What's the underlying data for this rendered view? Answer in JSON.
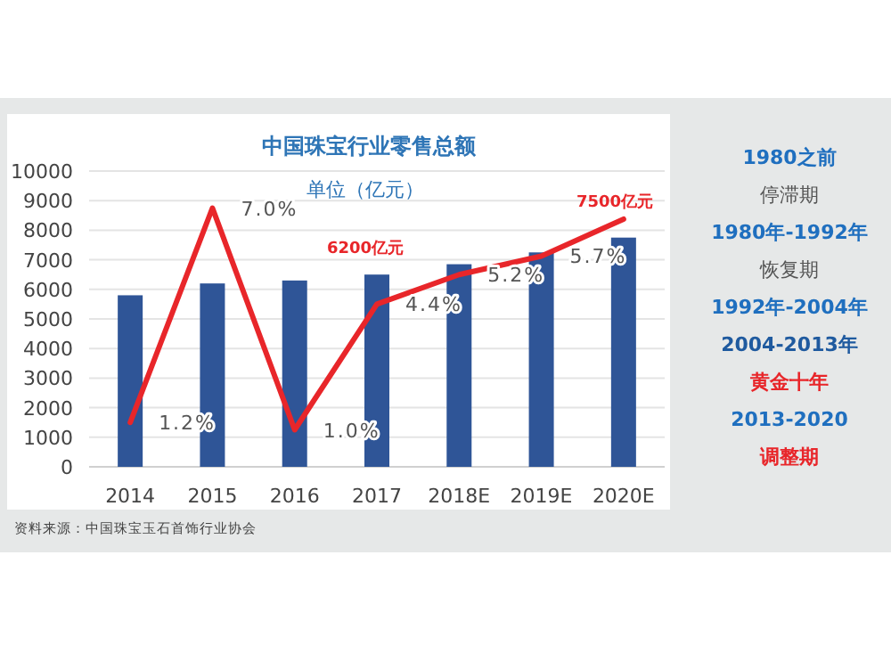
{
  "chart_data": [
    {
      "type": "bar",
      "title": "中国珠宝行业零售总额",
      "subtitle": "单位（亿元）",
      "categories": [
        "2014",
        "2015",
        "2016",
        "2017",
        "2018E",
        "2019E",
        "2020E"
      ],
      "series": [
        {
          "type": "bar",
          "color": "#2f5597",
          "values": [
            5800,
            6200,
            6300,
            6500,
            6850,
            7250,
            7750
          ]
        },
        {
          "type": "line",
          "axis": "y2",
          "color": "#e8262a",
          "values": [
            1.2,
            7.0,
            1.0,
            4.4,
            5.2,
            5.7,
            6.7
          ],
          "value_labels": [
            "1.2%",
            "7.0%",
            "1.0%",
            "4.4%",
            "5.2%",
            "5.7%",
            null
          ]
        }
      ],
      "ylim": [
        0,
        10000
      ],
      "yticks": [
        0,
        1000,
        2000,
        3000,
        4000,
        5000,
        6000,
        7000,
        8000,
        9000,
        10000
      ],
      "y2lim": [
        0,
        8
      ],
      "grid": "y",
      "marker": "none",
      "line_style": "solid",
      "annotations": [
        "6200亿元",
        "7500亿元",
        "资料来源：中国珠宝玉石首饰行业协会"
      ]
    },
    {
      "type": "other",
      "annotations": [
        "1980之前",
        "停滞期",
        "1980年-1992年",
        "恢复期",
        "1992年-2004年",
        "2004-2013年",
        "黄金十年",
        "2013-2020",
        "调整期"
      ],
      "colors": [
        "#1f6fbf",
        "#555555",
        "#1f6fbf",
        "#555555",
        "#1f6fbf",
        "#1f5a9f",
        "#e8262a",
        "#1f6fbf",
        "#e8262a"
      ]
    }
  ]
}
